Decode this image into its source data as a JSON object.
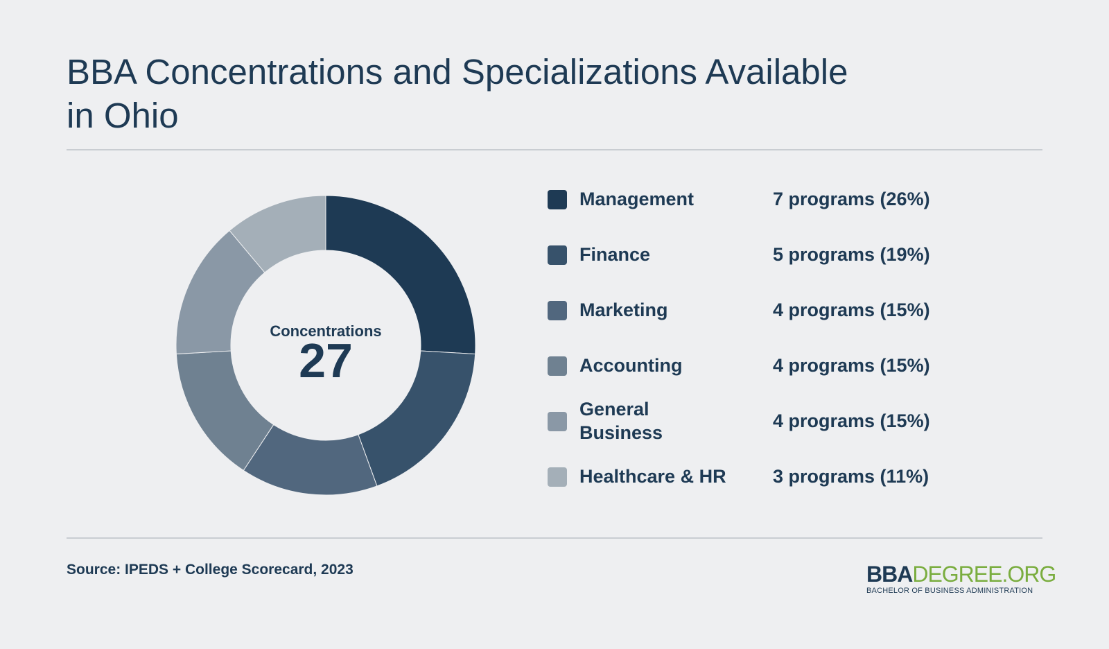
{
  "title": "BBA Concentrations and Specializations Available in Ohio",
  "center": {
    "label": "Concentrations",
    "value": "27"
  },
  "source": "Source: IPEDS + College Scorecard, 2023",
  "logo": {
    "bba": "BBA",
    "rest": "DEGREE.ORG",
    "tagline": "BACHELOR OF BUSINESS ADMINISTRATION"
  },
  "colors": {
    "background": "#eeeff1",
    "text": "#1e3a54",
    "rule": "#c9cdd2",
    "logo_accent": "#7aad3f"
  },
  "chart_data": {
    "type": "pie",
    "donut": true,
    "total": 27,
    "categories": [
      "Management",
      "Finance",
      "Marketing",
      "Accounting",
      "General Business",
      "Healthcare & HR"
    ],
    "values": [
      7,
      5,
      4,
      4,
      4,
      3
    ],
    "value_labels": [
      "7 programs (26%)",
      "5 programs (19%)",
      "4 programs (15%)",
      "4 programs (15%)",
      "4 programs (15%)",
      "3 programs (11%)"
    ],
    "colors": [
      "#1e3a54",
      "#37526b",
      "#51677e",
      "#6f8191",
      "#8a98a6",
      "#a4afb8"
    ],
    "legend_position": "right"
  }
}
